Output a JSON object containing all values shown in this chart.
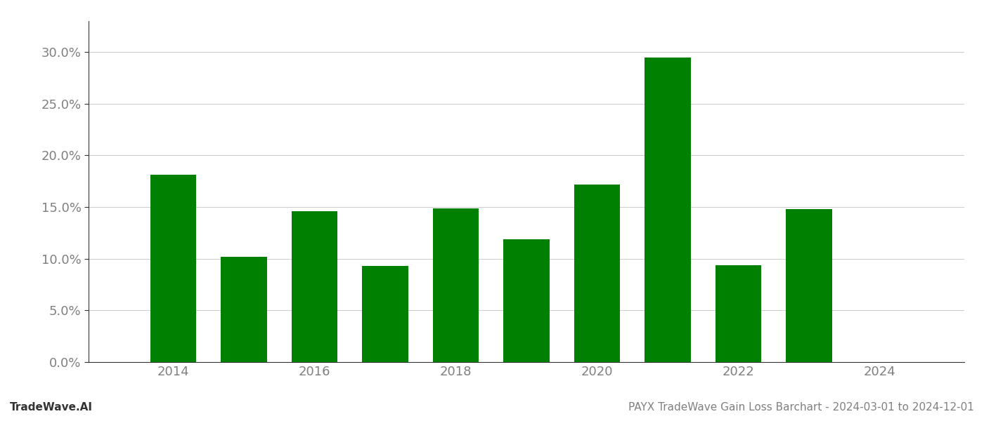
{
  "years": [
    2014,
    2015,
    2016,
    2017,
    2018,
    2019,
    2020,
    2021,
    2022,
    2023
  ],
  "values": [
    0.181,
    0.102,
    0.146,
    0.093,
    0.149,
    0.119,
    0.172,
    0.295,
    0.094,
    0.148
  ],
  "bar_color": "#008000",
  "background_color": "#ffffff",
  "grid_color": "#cccccc",
  "ylabel_color": "#808080",
  "xlabel_color": "#808080",
  "spine_color": "#333333",
  "title_text": "PAYX TradeWave Gain Loss Barchart - 2024-03-01 to 2024-12-01",
  "watermark_text": "TradeWave.AI",
  "ylim": [
    0,
    0.33
  ],
  "yticks": [
    0.0,
    0.05,
    0.1,
    0.15,
    0.2,
    0.25,
    0.3
  ],
  "ytick_labels": [
    "0.0%",
    "5.0%",
    "10.0%",
    "15.0%",
    "20.0%",
    "25.0%",
    "30.0%"
  ],
  "xticks": [
    2014,
    2016,
    2018,
    2020,
    2022,
    2024
  ],
  "title_fontsize": 11,
  "watermark_fontsize": 11,
  "tick_fontsize": 13,
  "bar_width": 0.65,
  "xlim": [
    2012.8,
    2025.2
  ]
}
